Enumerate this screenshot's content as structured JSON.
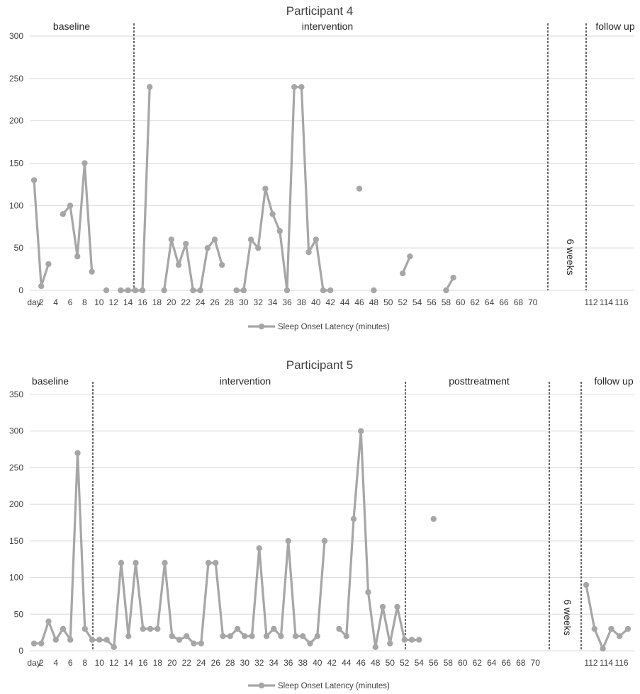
{
  "chart_data": [
    {
      "type": "line",
      "title": "Participant 4",
      "legend": "Sleep Onset Latency (minutes)",
      "legend_position": "bottom",
      "grid": true,
      "ylim": [
        0,
        300
      ],
      "yticks": [
        "0",
        "50",
        "100",
        "150",
        "200",
        "250",
        "300"
      ],
      "xlim": [
        1,
        74
      ],
      "xticks": [
        "day",
        "2",
        "4",
        "6",
        "8",
        "10",
        "12",
        "14",
        "16",
        "18",
        "20",
        "22",
        "24",
        "26",
        "28",
        "30",
        "32",
        "34",
        "36",
        "38",
        "40",
        "42",
        "44",
        "46",
        "48",
        "50",
        "52",
        "54",
        "56",
        "58",
        "60",
        "62",
        "64",
        "66",
        "68",
        "70",
        "112",
        "114",
        "116"
      ],
      "phases": [
        "baseline",
        "intervention",
        "follow up"
      ],
      "gap_label": "6 weeks",
      "series": [
        {
          "color": "#a6a6a6",
          "x": [
            1,
            2,
            3,
            4,
            5,
            6,
            7,
            8,
            9,
            10,
            11,
            12,
            13,
            14,
            15,
            16,
            17,
            18,
            19,
            20,
            21,
            22,
            23,
            24,
            25,
            26,
            27,
            28,
            29,
            30,
            31,
            32,
            33,
            34,
            35,
            36,
            37,
            38,
            39,
            40,
            41,
            42,
            43,
            44,
            45,
            46,
            47,
            48,
            49,
            50,
            51,
            52,
            53,
            54,
            55,
            56,
            57,
            58,
            59
          ],
          "values": [
            130,
            5,
            31,
            null,
            90,
            100,
            40,
            150,
            22,
            null,
            0,
            null,
            0,
            0,
            0,
            0,
            240,
            null,
            0,
            60,
            30,
            55,
            0,
            0,
            50,
            60,
            30,
            null,
            0,
            0,
            60,
            50,
            120,
            90,
            70,
            0,
            240,
            240,
            45,
            60,
            0,
            0,
            null,
            null,
            null,
            120,
            null,
            0,
            null,
            null,
            null,
            20,
            40,
            null,
            null,
            null,
            null,
            0,
            15
          ]
        }
      ]
    },
    {
      "type": "line",
      "title": "Participant 5",
      "legend": "Sleep Onset Latency (minutes)",
      "legend_position": "bottom",
      "grid": true,
      "ylim": [
        0,
        350
      ],
      "yticks": [
        "0",
        "50",
        "100",
        "150",
        "200",
        "250",
        "300",
        "350"
      ],
      "xlim": [
        1,
        74
      ],
      "xticks": [
        "day",
        "2",
        "4",
        "6",
        "8",
        "10",
        "12",
        "14",
        "16",
        "18",
        "20",
        "22",
        "24",
        "26",
        "28",
        "30",
        "32",
        "34",
        "36",
        "38",
        "40",
        "42",
        "44",
        "46",
        "48",
        "50",
        "52",
        "54",
        "56",
        "58",
        "60",
        "62",
        "64",
        "66",
        "68",
        "70",
        "112",
        "114",
        "116"
      ],
      "phases": [
        "baseline",
        "intervention",
        "posttreatment",
        "follow up"
      ],
      "gap_label": "6 weeks",
      "series": [
        {
          "color": "#a6a6a6",
          "x": [
            1,
            2,
            3,
            4,
            5,
            6,
            7,
            8,
            9,
            10,
            11,
            12,
            13,
            14,
            15,
            16,
            17,
            18,
            19,
            20,
            21,
            22,
            23,
            24,
            25,
            26,
            27,
            28,
            29,
            30,
            31,
            32,
            33,
            34,
            35,
            36,
            37,
            38,
            39,
            40,
            41,
            42,
            43,
            44,
            45,
            46,
            47,
            48,
            49,
            50,
            51,
            52,
            53,
            54,
            55
          ],
          "values": [
            10,
            10,
            40,
            15,
            30,
            15,
            270,
            30,
            15,
            15,
            15,
            5,
            120,
            20,
            120,
            30,
            30,
            30,
            120,
            20,
            15,
            20,
            10,
            10,
            120,
            120,
            20,
            20,
            30,
            20,
            20,
            140,
            20,
            30,
            20,
            150,
            20,
            20,
            10,
            20,
            150,
            null,
            30,
            20,
            180,
            300,
            80,
            5,
            60,
            10,
            60,
            15,
            15,
            15,
            null
          ]
        },
        {
          "color": "#a6a6a6",
          "x": [
            56,
            70,
            71,
            72,
            73,
            74,
            75,
            76
          ],
          "values": [
            180,
            null,
            90,
            30,
            3,
            30,
            20,
            30
          ]
        }
      ]
    }
  ]
}
